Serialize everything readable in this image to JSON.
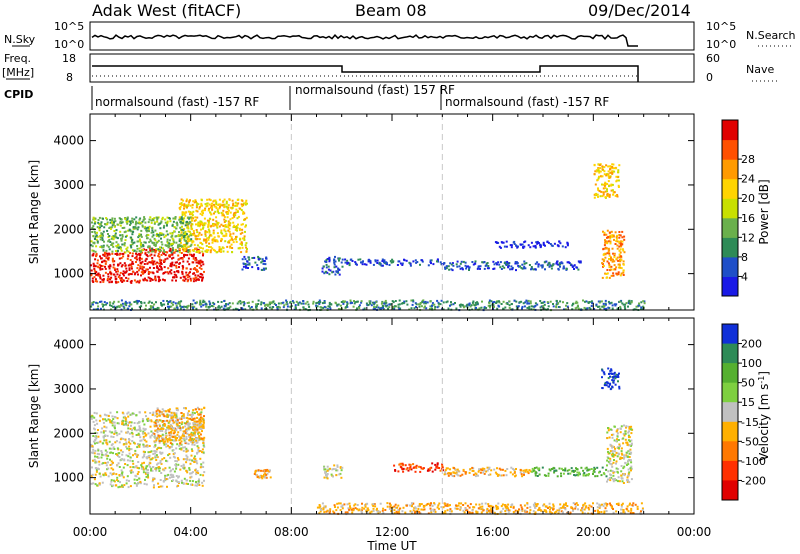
{
  "header": {
    "station": "Adak West (fitACF)",
    "beam": "Beam 08",
    "date": "09/Dec/2014"
  },
  "panels": {
    "nsky": {
      "label": "N.Sky",
      "ticks": [
        "10^5",
        "10^0"
      ],
      "right_ticks": [
        "10^5",
        "10^0"
      ],
      "right_label": "N.Search"
    },
    "freq": {
      "label_1": "Freq.",
      "label_2": "[MHz]",
      "ticks": [
        "18",
        "8"
      ],
      "right_ticks": [
        "60",
        "0"
      ],
      "right_label": "Nave"
    },
    "cpid": {
      "label": "CPID",
      "segments": [
        "normalsound (fast) -157 RF",
        "normalsound (fast) 157 RF",
        "normalsound (fast) -157 RF"
      ]
    }
  },
  "chart_data": [
    {
      "type": "heatmap",
      "title": "Power",
      "xlabel": "Time UT",
      "ylabel": "Slant Range [km]",
      "x_ticks": [
        "00:00",
        "04:00",
        "08:00",
        "12:00",
        "16:00",
        "20:00",
        "00:00"
      ],
      "x_range_hours": [
        0,
        24
      ],
      "y_ticks": [
        1000,
        2000,
        3000,
        4000
      ],
      "y_range_km": [
        180,
        4600
      ],
      "colorbar": {
        "label": "Power [dB]",
        "ticks": [
          "4",
          "8",
          "12",
          "16",
          "20",
          "24",
          "28"
        ],
        "colors": [
          "#1a1ae6",
          "#1f4fc8",
          "#2e8b57",
          "#6ab04c",
          "#c8e000",
          "#ffd400",
          "#ff9a00",
          "#ff5000",
          "#e00000"
        ]
      },
      "regions": [
        {
          "t": [
            0.0,
            2.0
          ],
          "r": [
            800,
            1500
          ],
          "level": 8
        },
        {
          "t": [
            2.0,
            4.5
          ],
          "r": [
            850,
            1600
          ],
          "level": 8
        },
        {
          "t": [
            3.5,
            6.2
          ],
          "r": [
            1500,
            2700
          ],
          "level": 5
        },
        {
          "t": [
            0.0,
            4.0
          ],
          "r": [
            1500,
            2300
          ],
          "level": 3
        },
        {
          "t": [
            6.0,
            7.0
          ],
          "r": [
            1100,
            1400
          ],
          "level": 1
        },
        {
          "t": [
            9.2,
            10.0
          ],
          "r": [
            1000,
            1400
          ],
          "level": 1
        },
        {
          "t": [
            10.0,
            14.0
          ],
          "r": [
            1200,
            1350
          ],
          "level": 1
        },
        {
          "t": [
            14.0,
            19.5
          ],
          "r": [
            1100,
            1300
          ],
          "level": 1
        },
        {
          "t": [
            16.0,
            19.0
          ],
          "r": [
            1600,
            1750
          ],
          "level": 0
        },
        {
          "t": [
            20.0,
            21.0
          ],
          "r": [
            2700,
            3500
          ],
          "level": 5
        },
        {
          "t": [
            20.3,
            21.2
          ],
          "r": [
            900,
            2000
          ],
          "level": 6
        },
        {
          "t": [
            0.0,
            22.0
          ],
          "r": [
            200,
            420
          ],
          "level": 2
        }
      ]
    },
    {
      "type": "heatmap",
      "title": "Velocity",
      "xlabel": "Time UT",
      "ylabel": "Slant Range [km]",
      "x_ticks": [
        "00:00",
        "04:00",
        "08:00",
        "12:00",
        "16:00",
        "20:00",
        "00:00"
      ],
      "x_range_hours": [
        0,
        24
      ],
      "y_ticks": [
        1000,
        2000,
        3000,
        4000
      ],
      "y_range_km": [
        180,
        4600
      ],
      "colorbar": {
        "label_main": "Velocity [m s",
        "label_sup": "-1",
        "label_end": "]",
        "ticks": [
          "200",
          "100",
          "50",
          "15",
          "-15",
          "-50",
          "-100",
          "-200"
        ],
        "colors": [
          "#1030d8",
          "#2e8b57",
          "#55b030",
          "#7ed040",
          "#c0c0c0",
          "#ffb000",
          "#ff7800",
          "#ff3000",
          "#e00000"
        ]
      },
      "regions": [
        {
          "t": [
            0.0,
            4.5
          ],
          "r": [
            800,
            2500
          ],
          "level": 4
        },
        {
          "t": [
            2.5,
            4.5
          ],
          "r": [
            1800,
            2600
          ],
          "level": 5
        },
        {
          "t": [
            4.0,
            4.5
          ],
          "r": [
            2100,
            2300
          ],
          "level": 5
        },
        {
          "t": [
            6.5,
            7.2
          ],
          "r": [
            1000,
            1200
          ],
          "level": 5
        },
        {
          "t": [
            9.2,
            10.0
          ],
          "r": [
            1000,
            1300
          ],
          "level": 4
        },
        {
          "t": [
            12.0,
            14.0
          ],
          "r": [
            1150,
            1350
          ],
          "level": 7
        },
        {
          "t": [
            14.0,
            17.5
          ],
          "r": [
            1050,
            1250
          ],
          "level": 5
        },
        {
          "t": [
            17.5,
            20.5
          ],
          "r": [
            1050,
            1250
          ],
          "level": 2
        },
        {
          "t": [
            20.3,
            21.0
          ],
          "r": [
            3000,
            3500
          ],
          "level": 0
        },
        {
          "t": [
            20.5,
            21.5
          ],
          "r": [
            900,
            2200
          ],
          "level": 4
        },
        {
          "t": [
            9.0,
            22.0
          ],
          "r": [
            200,
            450
          ],
          "level": 5
        }
      ]
    }
  ],
  "colors": {
    "grid_dash": "#c8c8c8",
    "axis": "#000000"
  }
}
